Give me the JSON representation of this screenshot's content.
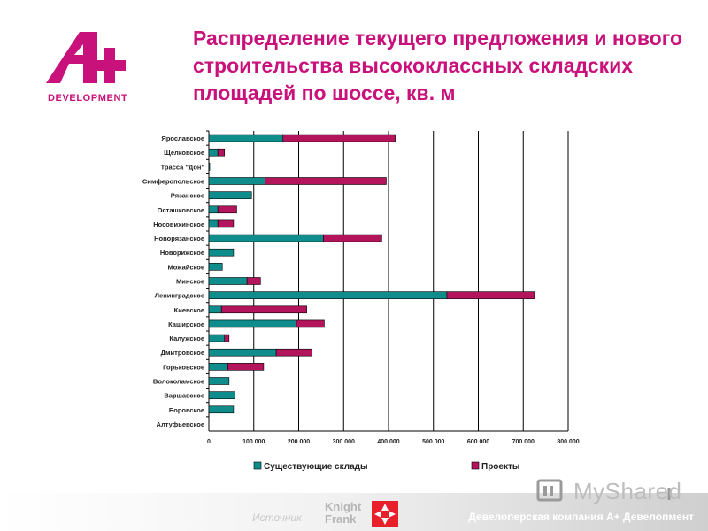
{
  "title": "Распределение текущего предложения и нового строительства высококлассных складских площадей по шоссе, кв. м",
  "logo": {
    "text": "DEVELOPMENT",
    "color": "#c8117a"
  },
  "footer": {
    "source_label": "Источник",
    "partner_name": "Knight Frank",
    "company": "Девелоперская компания А+ Девелопмент"
  },
  "watermark": {
    "text": "MyShared"
  },
  "colors": {
    "accent": "#c8117a",
    "existing": "#0f8c8c",
    "projects": "#b4145c"
  },
  "chart_data": {
    "type": "bar",
    "orientation": "horizontal",
    "stacked": true,
    "categories": [
      "Ярославское",
      "Щелковское",
      "Трасса \"Дон\"",
      "Симферопольское",
      "Рязанское",
      "Осташковское",
      "Носовихинское",
      "Новорязанское",
      "Новорижское",
      "Можайское",
      "Минское",
      "Ленинградское",
      "Киевское",
      "Каширское",
      "Калужское",
      "Дмитровское",
      "Горьковское",
      "Волоколамское",
      "Варшавское",
      "Боровское",
      "Алтуфьевское"
    ],
    "series": [
      {
        "name": "Существующие склады",
        "color": "#0f8c8c",
        "values": [
          165000,
          20000,
          2000,
          125000,
          95000,
          20000,
          20000,
          255000,
          55000,
          30000,
          85000,
          530000,
          28000,
          195000,
          35000,
          150000,
          42000,
          45000,
          58000,
          55000,
          0
        ]
      },
      {
        "name": "Проекты",
        "color": "#b4145c",
        "values": [
          250000,
          15000,
          0,
          270000,
          0,
          42000,
          35000,
          130000,
          0,
          0,
          30000,
          195000,
          190000,
          62000,
          10000,
          80000,
          80000,
          0,
          0,
          0,
          0
        ]
      }
    ],
    "xlim": [
      0,
      800000
    ],
    "xticks": [
      "0",
      "100 000",
      "200 000",
      "300 000",
      "400 000",
      "500 000",
      "600 000",
      "700 000",
      "800 000"
    ],
    "grid": "vertical",
    "legend": "bottom"
  }
}
